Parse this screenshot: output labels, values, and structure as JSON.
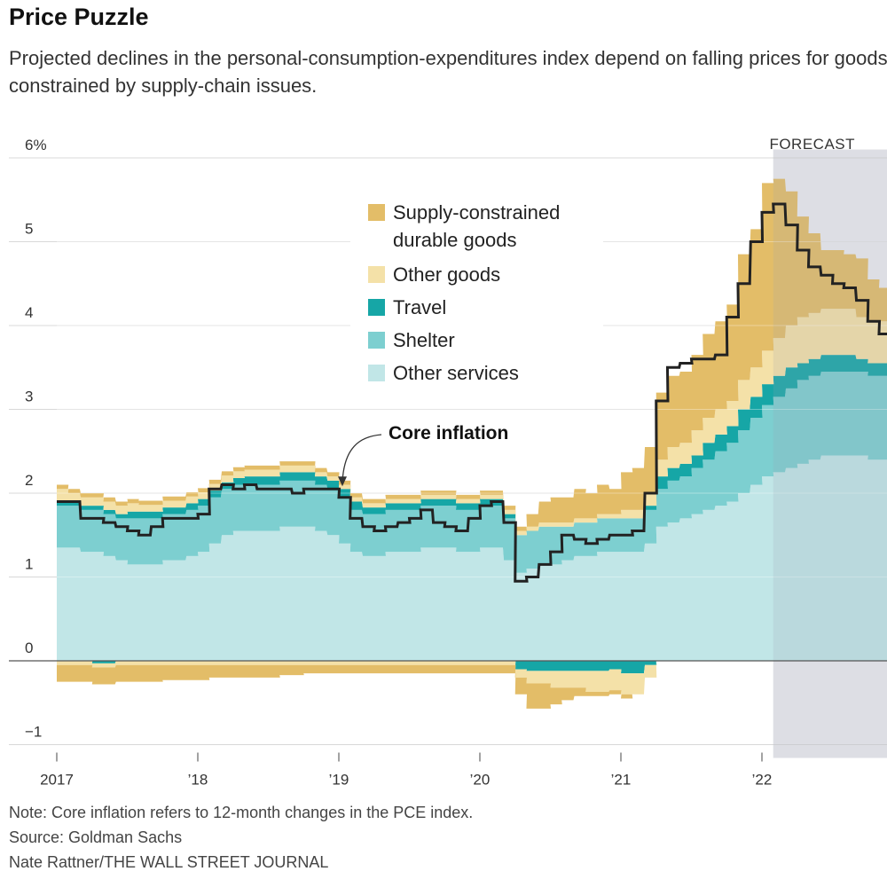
{
  "header": {
    "title": "Price Puzzle",
    "subtitle": "Projected declines in the personal-consumption-expenditures index depend on falling prices for goods constrained by supply-chain issues."
  },
  "footer": {
    "note": "Note: Core inflation refers to 12-month changes in the PCE index.",
    "source": "Source: Goldman Sachs",
    "credit": "Nate Rattner/THE WALL STREET JOURNAL"
  },
  "chart_data": {
    "type": "area",
    "title": "Price Puzzle",
    "ylim": [
      -1,
      6
    ],
    "yticks": [
      {
        "value": 6,
        "label": "6%"
      },
      {
        "value": 5,
        "label": "5"
      },
      {
        "value": 4,
        "label": "4"
      },
      {
        "value": 3,
        "label": "3"
      },
      {
        "value": 2,
        "label": "2"
      },
      {
        "value": 1,
        "label": "1"
      },
      {
        "value": 0,
        "label": "0"
      },
      {
        "value": -1,
        "label": "−1"
      }
    ],
    "xlim": [
      2017.0,
      2022.85
    ],
    "xticks": [
      {
        "value": 2017,
        "label": "2017"
      },
      {
        "value": 2018,
        "label": "’18"
      },
      {
        "value": 2019,
        "label": "’19"
      },
      {
        "value": 2020,
        "label": "’20"
      },
      {
        "value": 2021,
        "label": "’21"
      },
      {
        "value": 2022,
        "label": "’22"
      }
    ],
    "forecast": {
      "start": 2022.08,
      "label": "FORECAST"
    },
    "grid": true,
    "legend_position": "top-center",
    "colors": {
      "supply_constrained": "#e3bd68",
      "other_goods": "#f4e1a8",
      "travel": "#16a6a6",
      "shelter": "#7dcfd0",
      "other_services": "#c1e6e7",
      "core": "#222222",
      "forecast_shade": "#ececef"
    },
    "x": [
      2017.0,
      2017.08,
      2017.17,
      2017.25,
      2017.33,
      2017.42,
      2017.5,
      2017.58,
      2017.67,
      2017.75,
      2017.83,
      2017.92,
      2018.0,
      2018.08,
      2018.17,
      2018.25,
      2018.33,
      2018.42,
      2018.5,
      2018.58,
      2018.67,
      2018.75,
      2018.83,
      2018.92,
      2019.0,
      2019.08,
      2019.17,
      2019.25,
      2019.33,
      2019.42,
      2019.5,
      2019.58,
      2019.67,
      2019.75,
      2019.83,
      2019.92,
      2020.0,
      2020.08,
      2020.17,
      2020.25,
      2020.33,
      2020.42,
      2020.5,
      2020.58,
      2020.67,
      2020.75,
      2020.83,
      2020.92,
      2021.0,
      2021.08,
      2021.17,
      2021.25,
      2021.33,
      2021.42,
      2021.5,
      2021.58,
      2021.67,
      2021.75,
      2021.83,
      2021.92,
      2022.0,
      2022.08,
      2022.17,
      2022.25,
      2022.33,
      2022.42,
      2022.5,
      2022.58,
      2022.67,
      2022.75,
      2022.83
    ],
    "series": [
      {
        "name": "Supply-constrained durable goods",
        "key": "supply_constrained",
        "values": [
          0.05,
          0.05,
          0.05,
          0.05,
          0.05,
          0.05,
          0.05,
          0.05,
          0.05,
          0.05,
          0.05,
          0.05,
          0.05,
          0.05,
          0.05,
          0.05,
          0.05,
          0.05,
          0.05,
          0.05,
          0.05,
          0.05,
          0.05,
          0.05,
          0.05,
          0.05,
          0.05,
          0.05,
          0.05,
          0.05,
          0.05,
          0.05,
          0.05,
          0.05,
          0.05,
          0.05,
          0.05,
          0.05,
          0.05,
          0.05,
          0.15,
          0.25,
          0.3,
          0.3,
          0.35,
          0.3,
          0.35,
          0.3,
          0.45,
          0.5,
          0.55,
          0.8,
          0.85,
          0.85,
          0.9,
          1.0,
          1.05,
          1.15,
          1.5,
          1.65,
          2.0,
          1.9,
          1.6,
          1.2,
          0.95,
          0.7,
          0.7,
          0.65,
          0.7,
          0.5,
          0.4
        ]
      },
      {
        "name": "Other goods",
        "key": "other_goods",
        "values": [
          0.15,
          0.1,
          0.1,
          0.1,
          0.1,
          0.1,
          0.1,
          0.08,
          0.08,
          0.08,
          0.08,
          0.08,
          0.08,
          0.08,
          0.08,
          0.08,
          0.08,
          0.08,
          0.08,
          0.08,
          0.08,
          0.08,
          0.05,
          0.05,
          0.05,
          0.05,
          0.05,
          0.05,
          0.05,
          0.05,
          0.05,
          0.05,
          0.05,
          0.05,
          0.05,
          0.05,
          0.05,
          0.05,
          0.05,
          0.05,
          0.05,
          0.05,
          0.05,
          0.05,
          0.05,
          0.05,
          0.05,
          0.05,
          0.1,
          0.1,
          0.15,
          0.2,
          0.25,
          0.25,
          0.3,
          0.3,
          0.3,
          0.3,
          0.35,
          0.35,
          0.4,
          0.45,
          0.5,
          0.55,
          0.55,
          0.55,
          0.55,
          0.55,
          0.5,
          0.5,
          0.5
        ]
      },
      {
        "name": "Travel",
        "key": "travel",
        "values": [
          0.05,
          0.05,
          0.05,
          0.05,
          0.05,
          0.05,
          0.08,
          0.08,
          0.08,
          0.08,
          0.08,
          0.08,
          0.08,
          0.08,
          0.08,
          0.08,
          0.1,
          0.1,
          0.1,
          0.1,
          0.1,
          0.1,
          0.1,
          0.1,
          0.1,
          0.1,
          0.08,
          0.08,
          0.08,
          0.08,
          0.08,
          0.08,
          0.08,
          0.08,
          0.08,
          0.08,
          0.08,
          0.08,
          0.05,
          0.0,
          0.0,
          0.0,
          0.0,
          0.0,
          0.0,
          0.0,
          0.0,
          0.0,
          0.0,
          0.0,
          0.05,
          0.15,
          0.15,
          0.15,
          0.15,
          0.2,
          0.2,
          0.2,
          0.25,
          0.25,
          0.25,
          0.25,
          0.25,
          0.2,
          0.2,
          0.2,
          0.2,
          0.2,
          0.15,
          0.15,
          0.15
        ]
      },
      {
        "name": "Shelter",
        "key": "shelter",
        "values": [
          0.5,
          0.5,
          0.5,
          0.5,
          0.5,
          0.5,
          0.55,
          0.55,
          0.55,
          0.55,
          0.55,
          0.55,
          0.55,
          0.55,
          0.55,
          0.55,
          0.55,
          0.55,
          0.55,
          0.55,
          0.55,
          0.55,
          0.55,
          0.55,
          0.55,
          0.5,
          0.5,
          0.5,
          0.5,
          0.5,
          0.5,
          0.5,
          0.5,
          0.5,
          0.5,
          0.5,
          0.5,
          0.5,
          0.5,
          0.45,
          0.45,
          0.45,
          0.45,
          0.4,
          0.4,
          0.4,
          0.4,
          0.4,
          0.4,
          0.4,
          0.4,
          0.45,
          0.5,
          0.5,
          0.55,
          0.6,
          0.65,
          0.7,
          0.75,
          0.8,
          0.85,
          0.9,
          0.95,
          1.0,
          1.0,
          1.0,
          1.0,
          1.0,
          1.0,
          1.0,
          1.0
        ]
      },
      {
        "name": "Other services",
        "key": "other_services",
        "values": [
          1.35,
          1.35,
          1.3,
          1.3,
          1.25,
          1.2,
          1.15,
          1.15,
          1.15,
          1.2,
          1.2,
          1.25,
          1.3,
          1.4,
          1.5,
          1.55,
          1.55,
          1.55,
          1.55,
          1.6,
          1.6,
          1.6,
          1.55,
          1.5,
          1.4,
          1.3,
          1.25,
          1.25,
          1.3,
          1.3,
          1.3,
          1.35,
          1.35,
          1.35,
          1.3,
          1.3,
          1.35,
          1.35,
          1.2,
          1.05,
          1.1,
          1.15,
          1.15,
          1.2,
          1.25,
          1.25,
          1.3,
          1.3,
          1.3,
          1.3,
          1.4,
          1.6,
          1.65,
          1.7,
          1.75,
          1.8,
          1.85,
          1.9,
          2.0,
          2.1,
          2.2,
          2.25,
          2.3,
          2.35,
          2.4,
          2.45,
          2.45,
          2.45,
          2.45,
          2.4,
          2.4
        ]
      },
      {
        "name": "Supply-constrained durable goods (negative)",
        "key": "supply_constrained",
        "values": [
          -0.2,
          -0.2,
          -0.2,
          -0.2,
          -0.2,
          -0.2,
          -0.2,
          -0.2,
          -0.2,
          -0.18,
          -0.18,
          -0.18,
          -0.18,
          -0.15,
          -0.15,
          -0.15,
          -0.15,
          -0.15,
          -0.15,
          -0.12,
          -0.12,
          -0.1,
          -0.1,
          -0.1,
          -0.1,
          -0.1,
          -0.1,
          -0.1,
          -0.1,
          -0.1,
          -0.1,
          -0.1,
          -0.1,
          -0.1,
          -0.1,
          -0.1,
          -0.1,
          -0.1,
          -0.1,
          -0.2,
          -0.3,
          -0.3,
          -0.2,
          -0.15,
          -0.1,
          -0.05,
          -0.05,
          -0.05,
          -0.05,
          0.0,
          0.0,
          0.0,
          0.0,
          0.0,
          0.0,
          0.0,
          0.0,
          0.0,
          0.0,
          0.0,
          0.0,
          0.0,
          0.0,
          0.0,
          0.0,
          0.0,
          0.0,
          0.0,
          0.0,
          0.0,
          0.0
        ]
      },
      {
        "name": "Other goods (negative)",
        "key": "other_goods",
        "values": [
          -0.05,
          -0.05,
          -0.05,
          -0.05,
          -0.05,
          -0.05,
          -0.05,
          -0.05,
          -0.05,
          -0.05,
          -0.05,
          -0.05,
          -0.05,
          -0.05,
          -0.05,
          -0.05,
          -0.05,
          -0.05,
          -0.05,
          -0.05,
          -0.05,
          -0.05,
          -0.05,
          -0.05,
          -0.05,
          -0.05,
          -0.05,
          -0.05,
          -0.05,
          -0.05,
          -0.05,
          -0.05,
          -0.05,
          -0.05,
          -0.05,
          -0.05,
          -0.05,
          -0.05,
          -0.05,
          -0.1,
          -0.15,
          -0.15,
          -0.2,
          -0.2,
          -0.2,
          -0.25,
          -0.25,
          -0.25,
          -0.25,
          -0.25,
          -0.15,
          0.0,
          0.0,
          0.0,
          0.0,
          0.0,
          0.0,
          0.0,
          0.0,
          0.0,
          0.0,
          0.0,
          0.0,
          0.0,
          0.0,
          0.0,
          0.0,
          0.0,
          0.0,
          0.0,
          0.0
        ]
      },
      {
        "name": "Travel (negative)",
        "key": "travel",
        "values": [
          0.0,
          0.0,
          0.0,
          -0.03,
          -0.03,
          0.0,
          0.0,
          0.0,
          0.0,
          0.0,
          0.0,
          0.0,
          0.0,
          0.0,
          0.0,
          0.0,
          0.0,
          0.0,
          0.0,
          0.0,
          0.0,
          0.0,
          0.0,
          0.0,
          0.0,
          0.0,
          0.0,
          0.0,
          0.0,
          0.0,
          0.0,
          0.0,
          0.0,
          0.0,
          0.0,
          0.0,
          0.0,
          0.0,
          0.0,
          -0.1,
          -0.12,
          -0.12,
          -0.12,
          -0.12,
          -0.12,
          -0.12,
          -0.12,
          -0.1,
          -0.15,
          -0.15,
          -0.05,
          0.0,
          0.0,
          0.0,
          0.0,
          0.0,
          0.0,
          0.0,
          0.0,
          0.0,
          0.0,
          0.0,
          0.0,
          0.0,
          0.0,
          0.0,
          0.0,
          0.0,
          0.0,
          0.0,
          0.0
        ]
      }
    ],
    "core_inflation": {
      "name": "Core inflation",
      "values": [
        1.9,
        1.9,
        1.7,
        1.7,
        1.65,
        1.6,
        1.55,
        1.5,
        1.6,
        1.7,
        1.7,
        1.7,
        1.75,
        2.05,
        2.1,
        2.05,
        2.1,
        2.05,
        2.05,
        2.05,
        2.0,
        2.05,
        2.05,
        2.05,
        1.95,
        1.7,
        1.6,
        1.55,
        1.6,
        1.65,
        1.7,
        1.8,
        1.65,
        1.6,
        1.55,
        1.7,
        1.85,
        1.9,
        1.65,
        0.95,
        1.0,
        1.15,
        1.3,
        1.5,
        1.45,
        1.4,
        1.45,
        1.5,
        1.5,
        1.55,
        2.0,
        3.1,
        3.5,
        3.55,
        3.6,
        3.6,
        3.65,
        4.1,
        4.5,
        5.0,
        5.35,
        5.45,
        5.2,
        4.9,
        4.7,
        4.6,
        4.5,
        4.45,
        4.3,
        4.05,
        3.9
      ]
    },
    "legend": [
      {
        "label": "Supply-constrained durable goods",
        "lines": [
          "Supply-constrained",
          "durable goods"
        ],
        "key": "supply_constrained"
      },
      {
        "label": "Other goods",
        "lines": [
          "Other goods"
        ],
        "key": "other_goods"
      },
      {
        "label": "Travel",
        "lines": [
          "Travel"
        ],
        "key": "travel"
      },
      {
        "label": "Shelter",
        "lines": [
          "Shelter"
        ],
        "key": "shelter"
      },
      {
        "label": "Other services",
        "lines": [
          "Other services"
        ],
        "key": "other_services"
      }
    ],
    "annotations": [
      {
        "text": "Core inflation",
        "points_to": {
          "x": 2019.0,
          "y": 2.05
        }
      }
    ]
  }
}
